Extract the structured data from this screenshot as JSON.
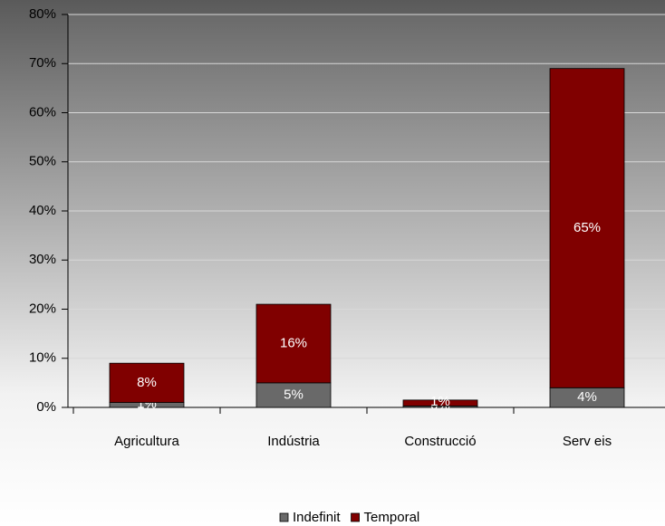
{
  "chart_data": {
    "type": "stacked_bar",
    "categories": [
      "Agricultura",
      "Indústria",
      "Construcció",
      "Serv eis"
    ],
    "series": [
      {
        "name": "Indefinit",
        "color": "#696969",
        "values": [
          1,
          5,
          0.3,
          4
        ],
        "value_labels": [
          "1%",
          "5%",
          "0%",
          "4%"
        ]
      },
      {
        "name": "Temporal",
        "color": "#800000",
        "values": [
          8,
          16,
          1.2,
          65
        ],
        "value_labels": [
          "8%",
          "16%",
          "1%",
          "65%"
        ]
      }
    ],
    "ylim": [
      0,
      80
    ],
    "yticks": [
      {
        "value": 0,
        "label": "0%"
      },
      {
        "value": 10,
        "label": "10%"
      },
      {
        "value": 20,
        "label": "20%"
      },
      {
        "value": 30,
        "label": "30%"
      },
      {
        "value": 40,
        "label": "40%"
      },
      {
        "value": 50,
        "label": "50%"
      },
      {
        "value": 60,
        "label": "60%"
      },
      {
        "value": 70,
        "label": "70%"
      },
      {
        "value": 80,
        "label": "80%"
      }
    ],
    "grid": true,
    "legend": "bottom"
  }
}
